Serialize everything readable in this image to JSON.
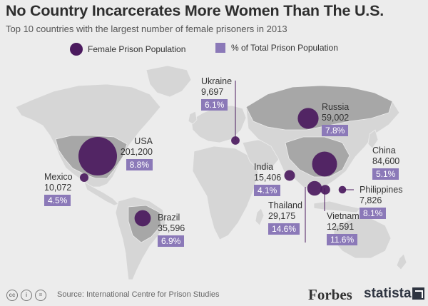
{
  "title": "No Country Incarcerates More Women Than The U.S.",
  "subtitle": "Top 10 countries with the largest number of female prisoners in 2013",
  "legend": {
    "population": "Female Prison Population",
    "share": "% of Total Prison Population"
  },
  "source": "Source: International Centre for Prison Studies",
  "brands": {
    "forbes": "Forbes",
    "statista": "statista"
  },
  "colors": {
    "bubble": "#4b1a5e",
    "badge": "#8b79b8",
    "land": "#d6d6d6",
    "highlight": "#a7a7a7",
    "background": "#ececec"
  },
  "chart_data": {
    "type": "bubble-map",
    "unit_population": "female prisoners",
    "unit_share": "% of total prison population",
    "year": 2013,
    "countries": [
      {
        "name": "USA",
        "population_label": "201,200",
        "population": 201200,
        "share_label": "8.8%",
        "share": 8.8
      },
      {
        "name": "China",
        "population_label": "84,600",
        "population": 84600,
        "share_label": "5.1%",
        "share": 5.1
      },
      {
        "name": "Russia",
        "population_label": "59,002",
        "population": 59002,
        "share_label": "7.8%",
        "share": 7.8
      },
      {
        "name": "Brazil",
        "population_label": "35,596",
        "population": 35596,
        "share_label": "6.9%",
        "share": 6.9
      },
      {
        "name": "Thailand",
        "population_label": "29,175",
        "population": 29175,
        "share_label": "14.6%",
        "share": 14.6
      },
      {
        "name": "India",
        "population_label": "15,406",
        "population": 15406,
        "share_label": "4.1%",
        "share": 4.1
      },
      {
        "name": "Vietnam",
        "population_label": "12,591",
        "population": 12591,
        "share_label": "11.6%",
        "share": 11.6
      },
      {
        "name": "Mexico",
        "population_label": "10,072",
        "population": 10072,
        "share_label": "4.5%",
        "share": 4.5
      },
      {
        "name": "Ukraine",
        "population_label": "9,697",
        "population": 9697,
        "share_label": "6.1%",
        "share": 6.1
      },
      {
        "name": "Philippines",
        "population_label": "7,826",
        "population": 7826,
        "share_label": "8.1%",
        "share": 8.1
      }
    ]
  }
}
